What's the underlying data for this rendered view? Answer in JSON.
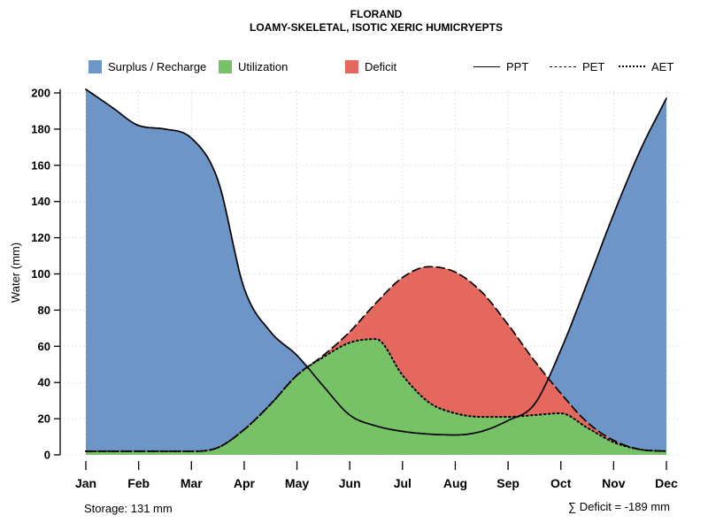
{
  "title": {
    "line1": "FLORAND",
    "line2": "LOAMY-SKELETAL, ISOTIC XERIC HUMICRYEPTS"
  },
  "legend": {
    "surplus": "Surplus / Recharge",
    "utilization": "Utilization",
    "deficit": "Deficit",
    "ppt": "PPT",
    "pet": "PET",
    "aet": "AET"
  },
  "ylabel": "Water (mm)",
  "footer": {
    "storage": "Storage: 131 mm",
    "deficit_sum": "∑ Deficit = -189 mm"
  },
  "colors": {
    "surplus": "#6e95c7",
    "utilization": "#77c266",
    "deficit": "#e4685e",
    "line": "#000000",
    "grid": "#d8d8d8"
  },
  "chart_data": {
    "type": "area",
    "title": "FLORAND",
    "subtitle": "LOAMY-SKELETAL, ISOTIC XERIC HUMICRYEPTS",
    "xlabel": "",
    "ylabel": "Water (mm)",
    "ylim": [
      0,
      206
    ],
    "yticks": [
      0,
      20,
      40,
      60,
      80,
      100,
      120,
      140,
      160,
      180,
      200
    ],
    "months": [
      "Jan",
      "Feb",
      "Mar",
      "Apr",
      "May",
      "Jun",
      "Jul",
      "Aug",
      "Sep",
      "Oct",
      "Nov",
      "Dec"
    ],
    "x_months": [
      0,
      0.5,
      1,
      1.5,
      2,
      2.5,
      3,
      3.5,
      4,
      4.5,
      5,
      5.5,
      6,
      6.5,
      7,
      7.5,
      8,
      8.5,
      9,
      9.5,
      10,
      10.5,
      11
    ],
    "series": [
      {
        "name": "PPT",
        "line": "solid",
        "values": [
          202,
          192,
          182,
          180,
          175,
          152,
          92,
          68,
          55,
          38,
          22,
          16,
          13,
          11.5,
          11,
          13,
          19,
          28,
          58,
          95,
          133,
          168,
          197
        ]
      },
      {
        "name": "PET",
        "line": "dashed",
        "values": [
          2,
          2,
          2,
          2,
          2,
          4,
          14,
          28,
          44,
          55,
          68,
          84,
          98,
          104,
          101,
          90,
          72,
          52,
          34,
          18,
          8,
          3,
          2
        ]
      },
      {
        "name": "AET",
        "line": "dotted",
        "values": [
          2,
          2,
          2,
          2,
          2,
          4,
          14,
          28,
          44,
          54,
          62,
          64,
          44,
          29,
          23,
          21,
          21,
          22,
          23,
          15,
          7,
          3,
          2
        ]
      }
    ],
    "areas": [
      {
        "name": "surplus",
        "label": "Surplus / Recharge",
        "between": [
          "PET",
          "PPT"
        ],
        "color_key": "surplus"
      },
      {
        "name": "utilization",
        "label": "Utilization",
        "between": [
          "baseline",
          "AET"
        ],
        "color_key": "utilization"
      },
      {
        "name": "deficit",
        "label": "Deficit",
        "between": [
          "AET",
          "PET"
        ],
        "color_key": "deficit"
      }
    ],
    "legend_position": "top",
    "grid": true,
    "storage_mm": 131,
    "deficit_sum_mm": -189
  }
}
